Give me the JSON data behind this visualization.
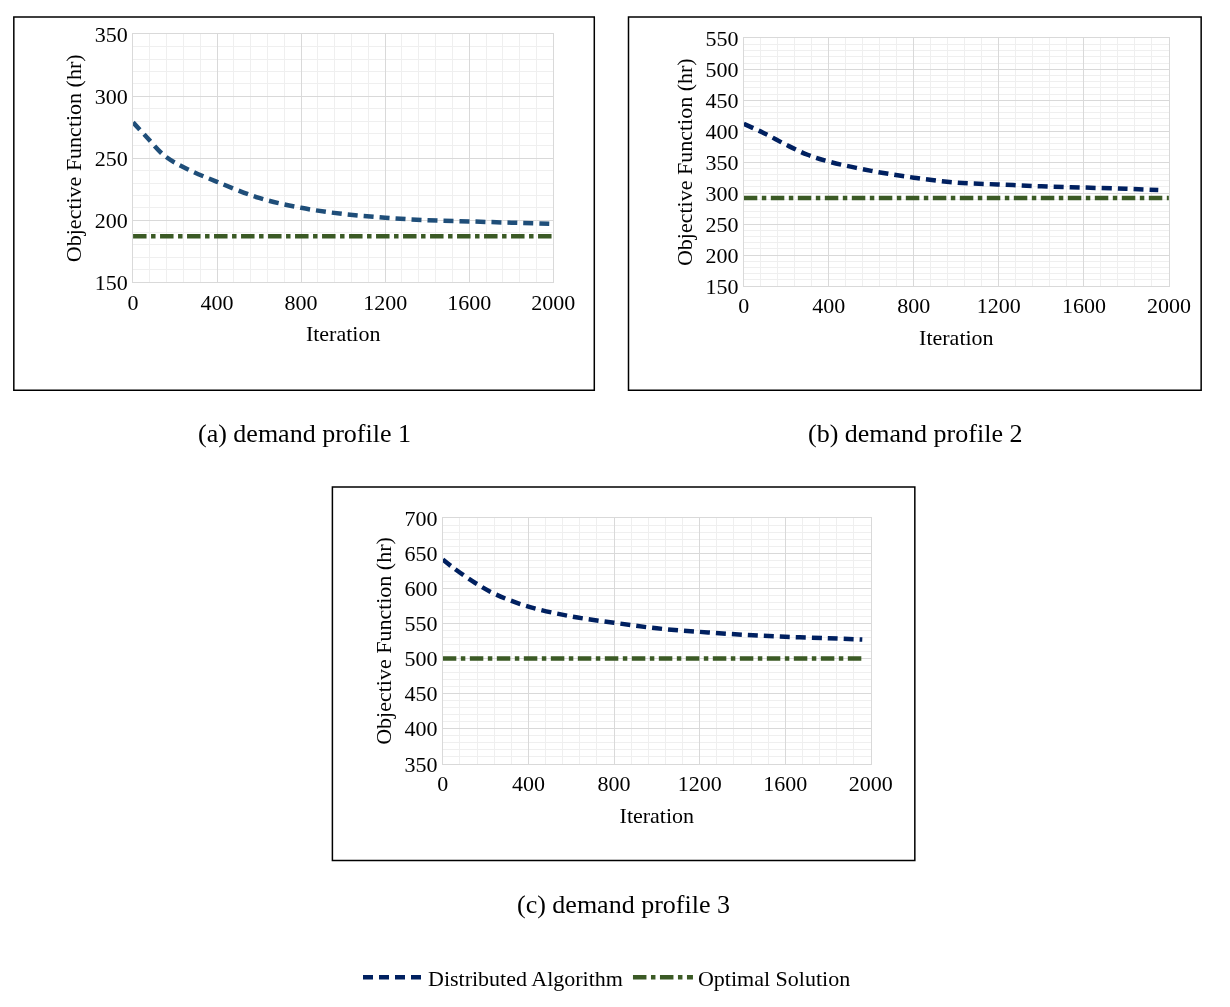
{
  "chart_data": [
    {
      "type": "line",
      "title": "(a) demand profile 1",
      "xlabel": "Iteration",
      "ylabel": "Objective Function (hr)",
      "xlim": [
        0,
        2000
      ],
      "xticks": [
        0,
        400,
        800,
        1200,
        1600,
        2000
      ],
      "ylim": [
        150,
        350
      ],
      "yticks": [
        150,
        200,
        250,
        300,
        350
      ],
      "grid": true,
      "series": [
        {
          "color": "#1f4e79",
          "line_style": "dashed",
          "x": [
            0,
            60,
            150,
            250,
            400,
            600,
            800,
            1000,
            1200,
            1400,
            1600,
            1800,
            2000
          ],
          "values": [
            279,
            268,
            252,
            242,
            231,
            218,
            210,
            205,
            202,
            200,
            199,
            198,
            197
          ]
        },
        {
          "color": "#3b5a25",
          "line_style": "dashdot",
          "x": [
            0,
            2000
          ],
          "values": [
            187,
            187
          ]
        }
      ]
    },
    {
      "type": "line",
      "title": "(b) demand profile 2",
      "xlabel": "Iteration",
      "ylabel": "Objective Function (hr)",
      "xlim": [
        0,
        2000
      ],
      "xticks": [
        0,
        400,
        800,
        1200,
        1600,
        2000
      ],
      "ylim": [
        150,
        550
      ],
      "yticks": [
        150,
        200,
        250,
        300,
        350,
        400,
        450,
        500,
        550
      ],
      "grid": true,
      "series": [
        {
          "color": "#002060",
          "line_style": "dashed",
          "x": [
            0,
            100,
            200,
            300,
            400,
            600,
            800,
            1000,
            1200,
            1400,
            1600,
            1800,
            1950
          ],
          "values": [
            412,
            396,
            378,
            362,
            351,
            336,
            325,
            317,
            314,
            311,
            309,
            307,
            305
          ]
        },
        {
          "color": "#3b5a25",
          "line_style": "dashdot",
          "x": [
            0,
            2000
          ],
          "values": [
            292,
            292
          ]
        }
      ]
    },
    {
      "type": "line",
      "title": "(c) demand profile 3",
      "xlabel": "Iteration",
      "ylabel": "Objective Function (hr)",
      "xlim": [
        0,
        2000
      ],
      "xticks": [
        0,
        400,
        800,
        1200,
        1600,
        2000
      ],
      "ylim": [
        350,
        700
      ],
      "yticks": [
        350,
        400,
        450,
        500,
        550,
        600,
        650,
        700
      ],
      "grid": true,
      "legend": "bottom",
      "series": [
        {
          "name": "Distributed Algorithm",
          "color": "#002060",
          "line_style": "dashed",
          "x": [
            0,
            50,
            150,
            250,
            400,
            600,
            800,
            1000,
            1200,
            1400,
            1600,
            1800,
            1960
          ],
          "values": [
            641,
            629,
            608,
            591,
            574,
            560,
            551,
            543,
            538,
            534,
            531,
            529,
            527
          ]
        },
        {
          "name": "Optimal Solution",
          "color": "#3b5a25",
          "line_style": "dashdot",
          "x": [
            0,
            1960
          ],
          "values": [
            500,
            500
          ]
        }
      ]
    }
  ]
}
